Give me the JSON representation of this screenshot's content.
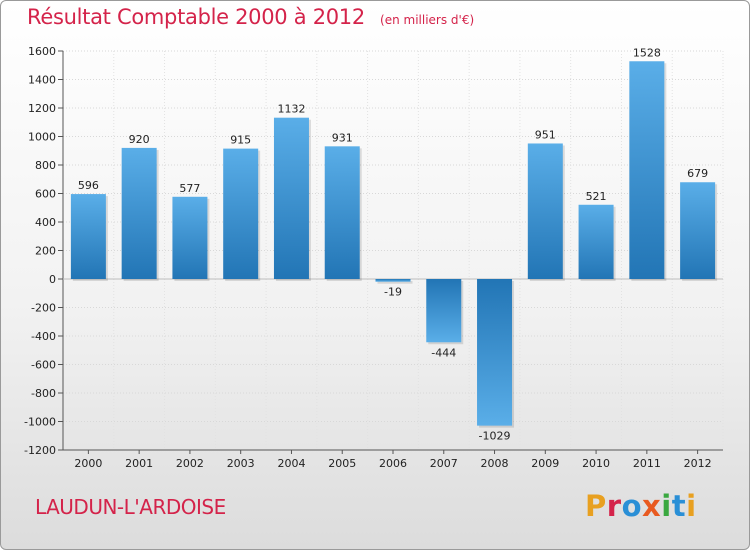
{
  "header": {
    "title": "Résultat Comptable 2000 à 2012",
    "subtitle": "(en milliers d'€)"
  },
  "footer": {
    "city": "LAUDUN-L'ARDOISE",
    "brand": "Proxiti",
    "brand_colors": [
      "#e8a020",
      "#d4234a",
      "#2a8fd6",
      "#e85a20",
      "#3aa840",
      "#2a8fd6",
      "#e8a020"
    ]
  },
  "colors": {
    "bar_light": "#5aaee8",
    "bar_dark": "#2275b5",
    "title": "#d4234a"
  },
  "chart_data": {
    "type": "bar",
    "categories": [
      "2000",
      "2001",
      "2002",
      "2003",
      "2004",
      "2005",
      "2006",
      "2007",
      "2008",
      "2009",
      "2010",
      "2011",
      "2012"
    ],
    "values": [
      596,
      920,
      577,
      915,
      1132,
      931,
      -19,
      -444,
      -1029,
      951,
      521,
      1528,
      679
    ],
    "yticks": [
      1600,
      1400,
      1200,
      1000,
      800,
      600,
      400,
      200,
      0,
      -200,
      -400,
      -600,
      -800,
      -1000,
      -1200
    ],
    "ylim": [
      -1200,
      1600
    ],
    "grid": true
  }
}
